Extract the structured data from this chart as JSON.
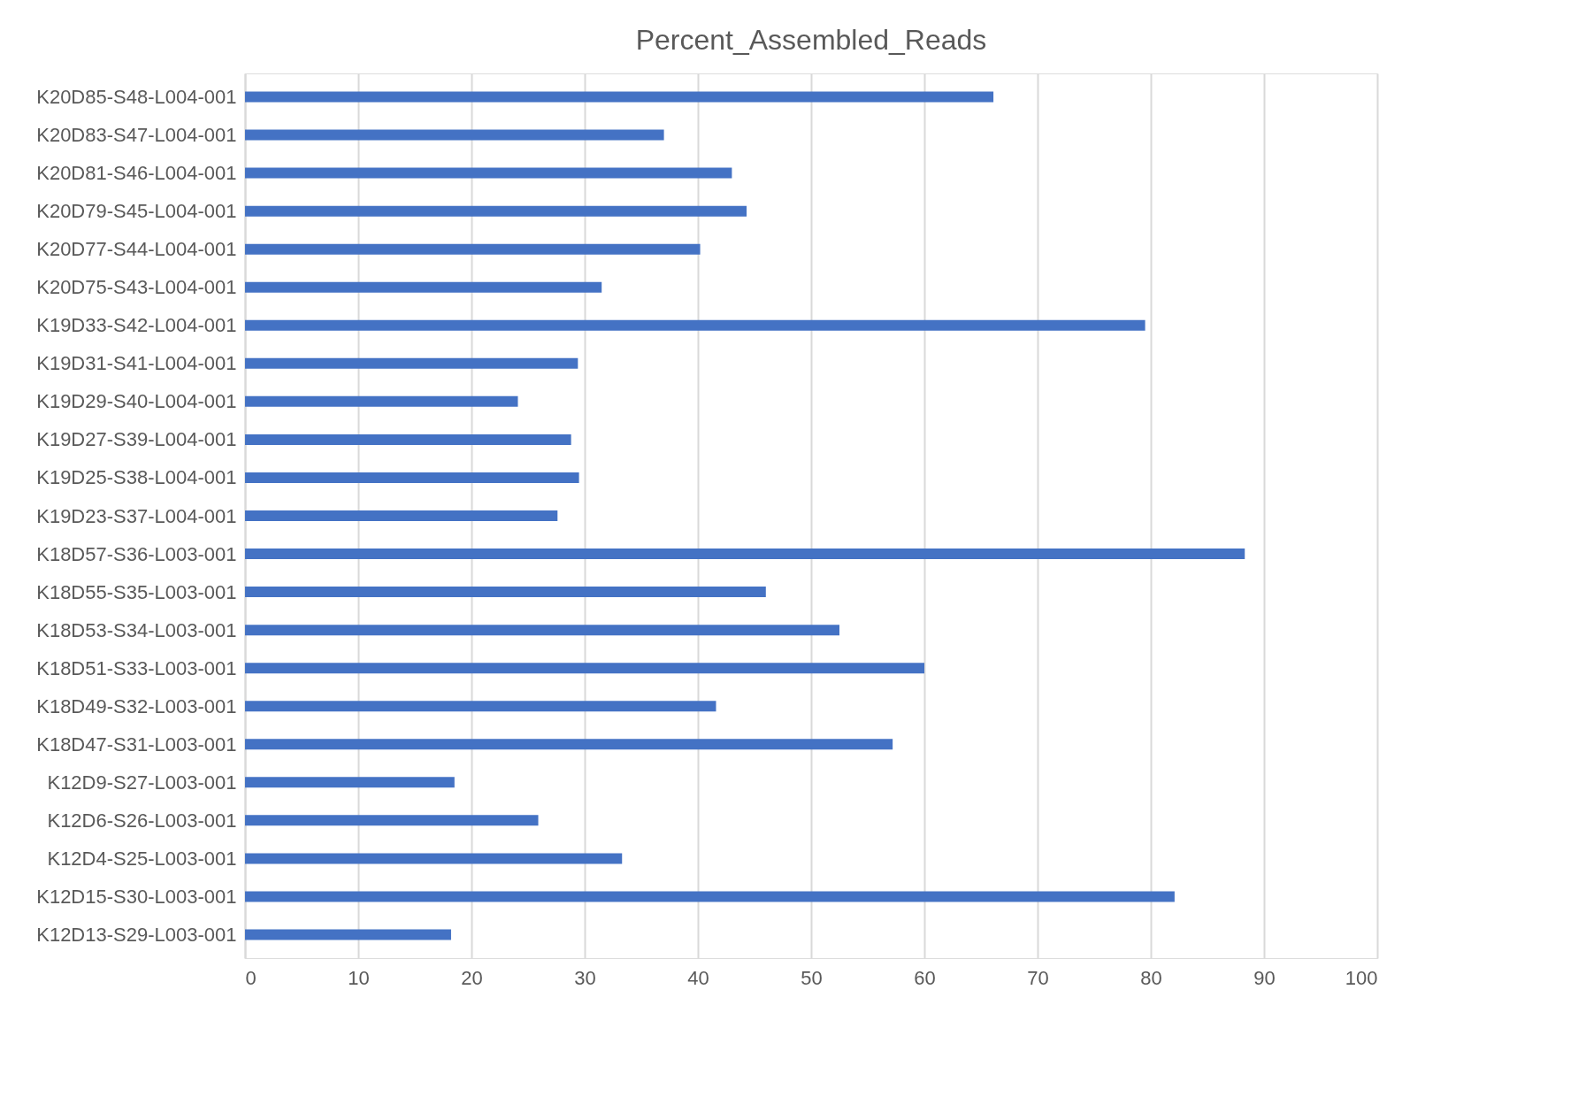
{
  "chart_data": {
    "type": "bar",
    "orientation": "horizontal",
    "title": "Percent_Assembled_Reads",
    "categories": [
      "K20D85-S48-L004-001",
      "K20D83-S47-L004-001",
      "K20D81-S46-L004-001",
      "K20D79-S45-L004-001",
      "K20D77-S44-L004-001",
      "K20D75-S43-L004-001",
      "K19D33-S42-L004-001",
      "K19D31-S41-L004-001",
      "K19D29-S40-L004-001",
      "K19D27-S39-L004-001",
      "K19D25-S38-L004-001",
      "K19D23-S37-L004-001",
      "K18D57-S36-L003-001",
      "K18D55-S35-L003-001",
      "K18D53-S34-L003-001",
      "K18D51-S33-L003-001",
      "K18D49-S32-L003-001",
      "K18D47-S31-L003-001",
      "K12D9-S27-L003-001",
      "K12D6-S26-L003-001",
      "K12D4-S25-L003-001",
      "K12D15-S30-L003-001",
      "K12D13-S29-L003-001"
    ],
    "values": [
      66.1,
      37.0,
      43.0,
      44.3,
      40.2,
      31.5,
      79.5,
      29.4,
      24.1,
      28.8,
      29.5,
      27.6,
      88.3,
      46.0,
      52.5,
      60.0,
      41.6,
      57.2,
      18.5,
      25.9,
      33.3,
      82.1,
      18.2
    ],
    "color": "#4472c4",
    "xlim": [
      0,
      100
    ],
    "xticks": [
      0,
      10,
      20,
      30,
      40,
      50,
      60,
      70,
      80,
      90,
      100
    ],
    "grid": "x"
  }
}
